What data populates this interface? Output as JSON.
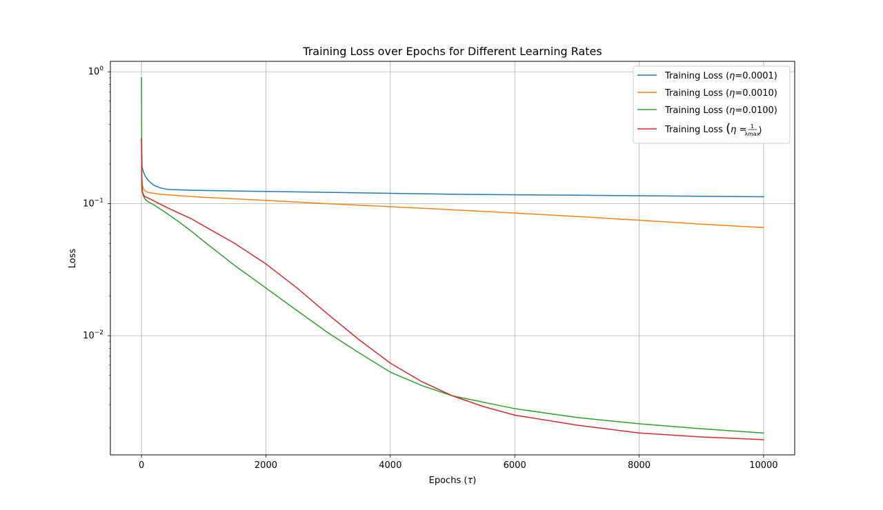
{
  "chart_data": {
    "type": "line",
    "title": "Training Loss over Epochs for Different Learning Rates",
    "xlabel_text": "Epochs (",
    "xlabel_symbol": "τ",
    "xlabel_close": ")",
    "ylabel": "Loss",
    "xlim": [
      -500,
      10500
    ],
    "ylim": [
      0.00125,
      1.2
    ],
    "y_scale": "log",
    "grid": true,
    "legend_position": "upper-right",
    "x_ticks": [
      0,
      2000,
      4000,
      6000,
      8000,
      10000
    ],
    "x_tick_labels": [
      "0",
      "2000",
      "4000",
      "6000",
      "8000",
      "10000"
    ],
    "y_ticks": [
      {
        "value": 1,
        "base": "10",
        "exp": "0"
      },
      {
        "value": 0.1,
        "base": "10",
        "exp": "−1"
      },
      {
        "value": 0.01,
        "base": "10",
        "exp": "−2"
      }
    ],
    "series": [
      {
        "name": "Training Loss (η=0.0001)",
        "legend_prefix": "Training Loss (",
        "legend_symbol": "η",
        "legend_suffix": "=0.0001)",
        "color": "#1f77b4",
        "x": [
          0,
          10,
          30,
          60,
          100,
          150,
          200,
          300,
          400,
          500,
          700,
          1000,
          1500,
          2000,
          3000,
          4000,
          5000,
          6000,
          7000,
          8000,
          9000,
          10000
        ],
        "y": [
          0.31,
          0.19,
          0.175,
          0.162,
          0.152,
          0.144,
          0.138,
          0.132,
          0.129,
          0.128,
          0.127,
          0.126,
          0.125,
          0.124,
          0.122,
          0.12,
          0.118,
          0.117,
          0.116,
          0.115,
          0.114,
          0.113
        ]
      },
      {
        "name": "Training Loss (η=0.0010)",
        "legend_prefix": "Training Loss (",
        "legend_symbol": "η",
        "legend_suffix": "=0.0010)",
        "color": "#ff7f0e",
        "x": [
          0,
          5,
          15,
          30,
          60,
          100,
          200,
          300,
          500,
          1000,
          2000,
          3000,
          4000,
          5000,
          6000,
          7000,
          8000,
          9000,
          10000
        ],
        "y": [
          0.31,
          0.16,
          0.14,
          0.13,
          0.125,
          0.122,
          0.12,
          0.118,
          0.116,
          0.112,
          0.106,
          0.1,
          0.095,
          0.09,
          0.085,
          0.08,
          0.075,
          0.07,
          0.066
        ]
      },
      {
        "name": "Training Loss (η=0.0100)",
        "legend_prefix": "Training Loss (",
        "legend_symbol": "η",
        "legend_suffix": "=0.0100)",
        "color": "#2ca02c",
        "x": [
          0,
          5,
          15,
          30,
          60,
          100,
          200,
          400,
          600,
          800,
          1000,
          1500,
          2000,
          2500,
          3000,
          3500,
          4000,
          4500,
          5000,
          6000,
          7000,
          8000,
          9000,
          10000
        ],
        "y": [
          0.9,
          0.15,
          0.125,
          0.115,
          0.108,
          0.104,
          0.098,
          0.085,
          0.073,
          0.062,
          0.052,
          0.034,
          0.023,
          0.0155,
          0.0105,
          0.0074,
          0.0053,
          0.0042,
          0.0035,
          0.0028,
          0.0024,
          0.00215,
          0.00197,
          0.00183
        ]
      },
      {
        "name": "Training Loss (η = 1/λmax)",
        "legend_prefix": "Training Loss ",
        "legend_symbol": "η = ",
        "legend_frac_num": "1",
        "legend_frac_den": "λmax",
        "color": "#d62728",
        "x": [
          0,
          5,
          15,
          30,
          60,
          100,
          200,
          400,
          600,
          800,
          1000,
          1500,
          2000,
          2500,
          3000,
          3500,
          4000,
          4500,
          5000,
          5500,
          6000,
          7000,
          8000,
          9000,
          10000
        ],
        "y": [
          0.31,
          0.135,
          0.122,
          0.117,
          0.113,
          0.111,
          0.105,
          0.094,
          0.085,
          0.077,
          0.068,
          0.05,
          0.035,
          0.023,
          0.0145,
          0.0093,
          0.0062,
          0.0045,
          0.0035,
          0.0029,
          0.0025,
          0.0021,
          0.00183,
          0.00171,
          0.00163
        ]
      }
    ]
  }
}
